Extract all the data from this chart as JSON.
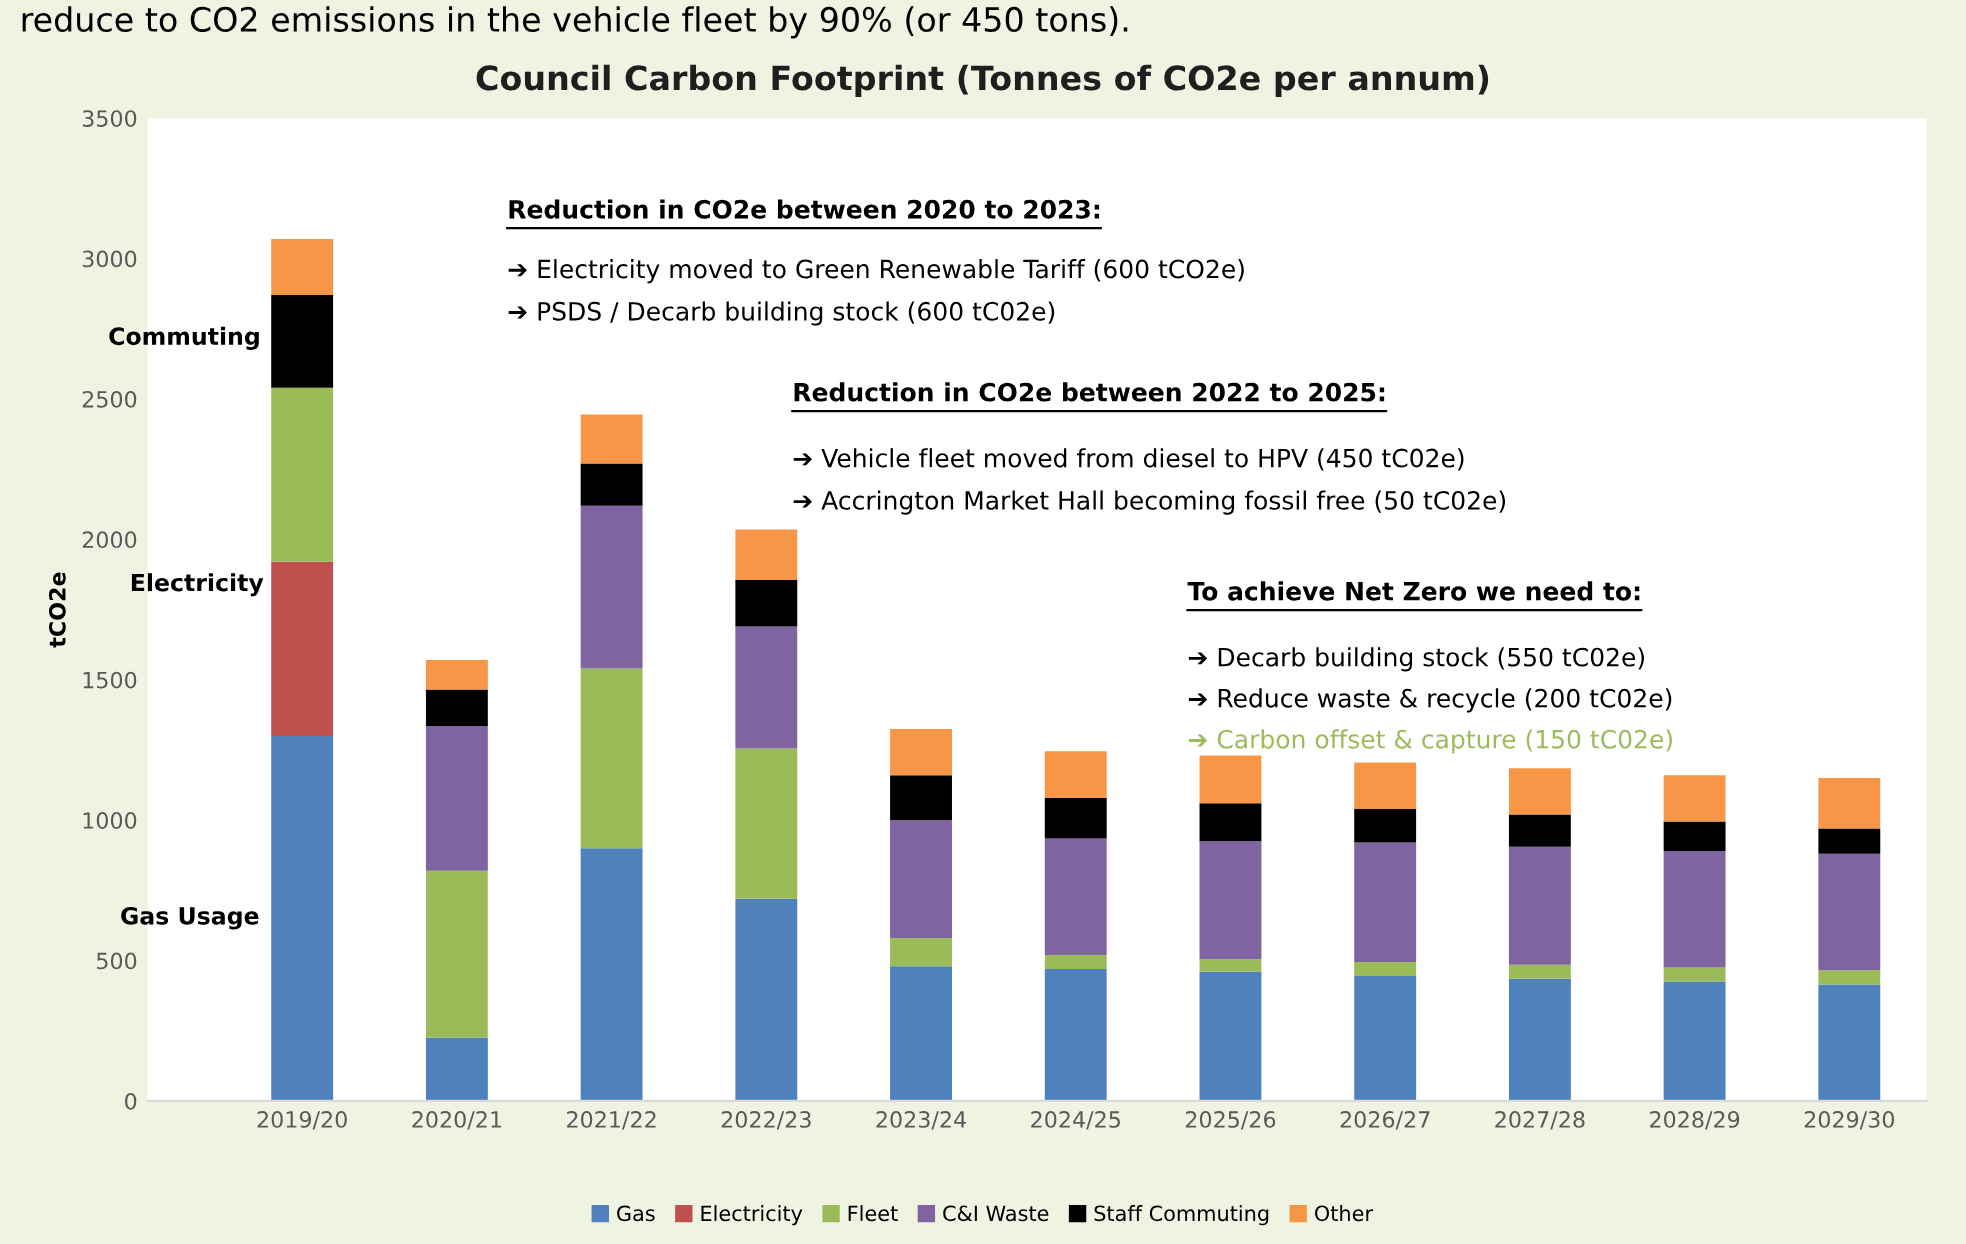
{
  "chart_data": {
    "type": "bar",
    "stacked": true,
    "title": "Council Carbon Footprint (Tonnes of CO2e per annum)",
    "ylabel": "tCO2e",
    "categories": [
      "2019/20",
      "2020/21",
      "2021/22",
      "2022/23",
      "2023/24",
      "2024/25",
      "2025/26",
      "2026/27",
      "2027/28",
      "2028/29",
      "2029/30"
    ],
    "series": [
      {
        "name": "Gas",
        "color": "#4f81bd",
        "values": [
          1300,
          225,
          900,
          720,
          480,
          470,
          460,
          445,
          435,
          425,
          415
        ]
      },
      {
        "name": "Electricity",
        "color": "#c0504d",
        "values": [
          620,
          0,
          0,
          0,
          0,
          0,
          0,
          0,
          0,
          0,
          0
        ]
      },
      {
        "name": "Fleet",
        "color": "#9bbb59",
        "values": [
          620,
          595,
          640,
          535,
          100,
          50,
          45,
          50,
          50,
          50,
          50
        ]
      },
      {
        "name": "C&I Waste",
        "color": "#8064a2",
        "values": [
          0,
          515,
          580,
          435,
          420,
          415,
          420,
          425,
          420,
          415,
          415
        ]
      },
      {
        "name": "Staff Commuting",
        "color": "#000000",
        "values": [
          330,
          130,
          150,
          165,
          160,
          145,
          135,
          120,
          115,
          105,
          90
        ]
      },
      {
        "name": "Other",
        "color": "#f79646",
        "values": [
          200,
          105,
          175,
          180,
          165,
          165,
          170,
          165,
          165,
          165,
          180
        ]
      }
    ],
    "ylim": [
      0,
      3500
    ],
    "yticks": [
      0,
      500,
      1000,
      1500,
      2000,
      2500,
      3000,
      3500
    ],
    "grid": false,
    "legend": "bottom",
    "annotations": [
      "reduce to CO2 emissions in the vehicle fleet by 90% (or 450 tons).",
      "Reduction in CO2e between 2020 to 2023:",
      "➔ Electricity moved to Green Renewable Tariff (600 tCO2e)",
      "➔ PSDS / Decarb building stock (600 tC02e)",
      "Reduction in CO2e between 2022 to 2025:",
      "➔ Vehicle fleet moved from diesel to HPV (450 tC02e)",
      "➔ Accrington Market Hall becoming fossil free (50 tC02e)",
      "To achieve Net Zero we need to:",
      "➔ Decarb building stock (550 tC02e)",
      "➔ Reduce waste & recycle (200 tC02e)",
      "➔ Carbon offset & capture (150 tC02e)",
      "Gas Usage",
      "Electricity",
      "Commuting"
    ]
  }
}
